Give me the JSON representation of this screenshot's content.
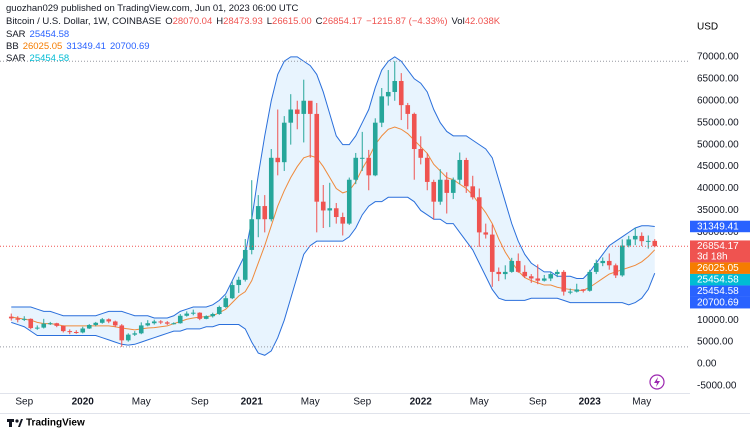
{
  "header": {
    "publisher": "guozhan029 published on TradingView.com, Jun 01, 2023 06:00 UTC",
    "symbol": "Bitcoin / U.S. Dollar, 1W, COINBASE",
    "ohlc": [
      {
        "label": "O",
        "value": "28070.04"
      },
      {
        "label": "H",
        "value": "28473.93"
      },
      {
        "label": "L",
        "value": "26615.00"
      },
      {
        "label": "C",
        "value": "26854.17"
      }
    ],
    "change": "−1215.87 (−4.33%)",
    "volume": {
      "label": "Vol",
      "value": "42.038K"
    },
    "indicators": [
      {
        "name": "SAR",
        "values": [
          {
            "text": "25454.58",
            "color": "#2962ff"
          }
        ]
      },
      {
        "name": "BB",
        "values": [
          {
            "text": "26025.05",
            "color": "#f57c00"
          },
          {
            "text": "31349.41",
            "color": "#2962ff"
          },
          {
            "text": "20700.69",
            "color": "#2962ff"
          }
        ]
      },
      {
        "name": "SAR",
        "values": [
          {
            "text": "25454.58",
            "color": "#00bcd4"
          }
        ]
      }
    ]
  },
  "footer": {
    "brand": "TradingView"
  },
  "chart_data": {
    "type": "candlestick",
    "currency": "USD",
    "up_color": "#26a69a",
    "down_color": "#ef5350",
    "categories": [
      null,
      null,
      "Sep",
      null,
      null,
      null,
      null,
      null,
      null,
      null,
      null,
      "2020",
      null,
      null,
      null,
      null,
      null,
      null,
      null,
      null,
      "May",
      null,
      null,
      null,
      null,
      null,
      null,
      null,
      null,
      "Sep",
      null,
      null,
      null,
      null,
      null,
      null,
      null,
      "2021",
      null,
      null,
      null,
      null,
      null,
      null,
      null,
      null,
      "May",
      null,
      null,
      null,
      null,
      null,
      null,
      null,
      "Sep",
      null,
      null,
      null,
      null,
      null,
      null,
      null,
      null,
      "2022",
      null,
      null,
      null,
      null,
      null,
      null,
      null,
      null,
      "May",
      null,
      null,
      null,
      null,
      null,
      null,
      null,
      null,
      "Sep",
      null,
      null,
      null,
      null,
      null,
      null,
      null,
      "2023",
      null,
      null,
      null,
      null,
      null,
      null,
      null,
      "May",
      null,
      null
    ],
    "open": [
      10800,
      10400,
      10100,
      10300,
      8200,
      8300,
      9200,
      9300,
      8700,
      7500,
      7300,
      7200,
      8100,
      8900,
      9400,
      10200,
      9700,
      8800,
      5400,
      6700,
      7000,
      8800,
      9300,
      9700,
      9500,
      9200,
      9300,
      11000,
      11500,
      11700,
      10300,
      10900,
      11400,
      13000,
      15000,
      18000,
      19200,
      26000,
      33000,
      36000,
      33000,
      47000,
      46000,
      55000,
      58000,
      57000,
      60000,
      57000,
      37000,
      35000,
      35500,
      33500,
      32000,
      42000,
      47000,
      47000,
      43000,
      55000,
      61000,
      62000,
      64500,
      59000,
      57000,
      49000,
      47000,
      41500,
      37000,
      42000,
      39000,
      42000,
      46500,
      40500,
      38000,
      30000,
      29500,
      21000,
      20500,
      21000,
      23500,
      21000,
      20000,
      19500,
      19000,
      19500,
      20500,
      21000,
      16500,
      16500,
      17000,
      16700,
      21000,
      23000,
      23500,
      22500,
      20200,
      27000,
      28400,
      29200,
      28000,
      28070.04
    ],
    "high": [
      11500,
      10900,
      10900,
      10400,
      8800,
      10300,
      9600,
      9400,
      8800,
      7900,
      7700,
      8500,
      9100,
      9600,
      10500,
      10400,
      9900,
      9100,
      7000,
      7500,
      9500,
      10000,
      10100,
      10000,
      9800,
      9500,
      11400,
      12000,
      12400,
      11800,
      11100,
      11700,
      13300,
      15600,
      18800,
      19900,
      28500,
      41900,
      38500,
      38500,
      49000,
      58000,
      56500,
      61500,
      60000,
      64800,
      59500,
      59500,
      40800,
      41300,
      36700,
      34500,
      42500,
      48100,
      52900,
      48800,
      56000,
      62900,
      67000,
      69000,
      66300,
      59500,
      57300,
      51900,
      48000,
      42000,
      44400,
      43700,
      42500,
      48200,
      47000,
      42900,
      40000,
      32000,
      31800,
      22000,
      22500,
      24200,
      25200,
      22500,
      20500,
      22700,
      20300,
      21000,
      21500,
      21400,
      17200,
      18300,
      17100,
      21500,
      23800,
      24300,
      25200,
      22900,
      28400,
      29200,
      31000,
      30000,
      29300,
      28473.93
    ],
    "low": [
      9900,
      9500,
      9800,
      7900,
      7800,
      8100,
      8900,
      8400,
      7200,
      6800,
      6900,
      7000,
      8000,
      8600,
      9200,
      9300,
      8400,
      3900,
      5100,
      6400,
      6800,
      8600,
      9000,
      9100,
      8900,
      9000,
      9200,
      10800,
      11100,
      10000,
      10200,
      10600,
      11200,
      12800,
      14800,
      16200,
      18800,
      25000,
      28900,
      30000,
      32500,
      43000,
      44000,
      50000,
      53500,
      50500,
      47000,
      30000,
      31000,
      31200,
      32000,
      29300,
      31700,
      41000,
      44000,
      39600,
      42800,
      54000,
      58900,
      60000,
      55600,
      53500,
      42000,
      45500,
      39600,
      33000,
      36300,
      34300,
      37600,
      41000,
      39000,
      37500,
      26700,
      28600,
      17600,
      18900,
      19300,
      20800,
      20800,
      19600,
      18500,
      18200,
      18800,
      18900,
      19800,
      15600,
      15900,
      16300,
      16300,
      16500,
      20500,
      22300,
      21500,
      19600,
      19900,
      26600,
      27100,
      26900,
      26300,
      26615
    ],
    "close": [
      10400,
      10100,
      10300,
      8200,
      8300,
      9200,
      9300,
      8700,
      7500,
      7300,
      7200,
      8100,
      8900,
      9400,
      10200,
      9700,
      8800,
      5400,
      6700,
      7000,
      8800,
      9300,
      9700,
      9500,
      9200,
      9300,
      11000,
      11500,
      11700,
      10300,
      10900,
      11400,
      13000,
      15000,
      18000,
      19200,
      26000,
      33000,
      36000,
      33000,
      47000,
      46000,
      55000,
      58000,
      57000,
      60000,
      57000,
      37000,
      35000,
      35500,
      33500,
      32000,
      42000,
      47000,
      47000,
      43000,
      55000,
      61000,
      62000,
      64500,
      59000,
      57000,
      49000,
      47000,
      41500,
      37000,
      42000,
      39000,
      42000,
      46500,
      40500,
      38000,
      30000,
      29500,
      21000,
      20500,
      21000,
      23500,
      21000,
      20000,
      19500,
      19000,
      19500,
      20500,
      21000,
      16500,
      16500,
      17000,
      16700,
      21000,
      23000,
      23500,
      22500,
      20200,
      27000,
      28400,
      29200,
      28000,
      28070.04,
      26854.17
    ],
    "bands": {
      "fill": "rgba(33,150,243,0.10)",
      "series": [
        {
          "color": "#2a6fdb",
          "values": [
            13000,
            13000,
            13000,
            13000,
            12500,
            12000,
            12000,
            11500,
            11000,
            11000,
            11000,
            11000,
            11000,
            11000,
            11500,
            12000,
            12000,
            12000,
            11500,
            11000,
            11000,
            11000,
            10500,
            10500,
            10500,
            11000,
            12000,
            12500,
            13000,
            13000,
            13000,
            13500,
            14500,
            16000,
            19000,
            22000,
            25000,
            33000,
            43000,
            52000,
            60000,
            66000,
            69000,
            70000,
            70000,
            69000,
            68000,
            66000,
            62000,
            57000,
            52000,
            50000,
            50000,
            52000,
            55000,
            58000,
            63000,
            67000,
            69000,
            70000,
            69000,
            67000,
            65000,
            64000,
            62000,
            58000,
            55000,
            53000,
            52000,
            52000,
            52000,
            51000,
            50000,
            49000,
            47000,
            42000,
            37000,
            32000,
            28000,
            25000,
            23000,
            22000,
            21000,
            21000,
            20000,
            20000,
            20000,
            19500,
            19500,
            21000,
            23000,
            25000,
            27000,
            28000,
            29000,
            30000,
            31000,
            31500,
            31500,
            31349.41
          ]
        },
        {
          "color": "#ef8a3c",
          "values": [
            10700,
            10500,
            10200,
            10000,
            9500,
            9200,
            9200,
            9000,
            8700,
            8700,
            8700,
            8700,
            8700,
            8700,
            8700,
            8700,
            8500,
            8200,
            8000,
            7800,
            8000,
            8200,
            8300,
            8500,
            8700,
            9200,
            9700,
            10200,
            10500,
            10700,
            10800,
            11000,
            11700,
            12500,
            14000,
            15500,
            16500,
            19000,
            23000,
            27000,
            31500,
            36000,
            39500,
            42500,
            45000,
            47000,
            47500,
            47000,
            45000,
            42500,
            40000,
            39000,
            39500,
            41500,
            44500,
            47000,
            50000,
            52000,
            53500,
            54000,
            53500,
            52500,
            51000,
            49500,
            48000,
            45500,
            44000,
            42500,
            42000,
            41000,
            40000,
            38500,
            36500,
            34500,
            32000,
            28500,
            25500,
            23200,
            21200,
            19700,
            19000,
            18500,
            18000,
            18000,
            17500,
            17200,
            17000,
            16800,
            16800,
            17500,
            18500,
            19500,
            20500,
            21000,
            21500,
            22000,
            22500,
            23300,
            24500,
            26025.05
          ]
        },
        {
          "color": "#2a6fdb",
          "values": [
            9500,
            9000,
            8500,
            7500,
            6500,
            6500,
            6500,
            6500,
            6500,
            6500,
            6500,
            6500,
            6500,
            6500,
            6000,
            5500,
            5000,
            4500,
            4300,
            4500,
            5000,
            5500,
            6000,
            6500,
            7000,
            7500,
            7500,
            8000,
            8000,
            8000,
            8500,
            8500,
            9000,
            9000,
            9000,
            9000,
            8000,
            5000,
            2500,
            2000,
            3000,
            6000,
            10000,
            15000,
            20000,
            25000,
            27000,
            28000,
            28000,
            28000,
            28000,
            28000,
            29000,
            31000,
            34000,
            36000,
            37000,
            37000,
            38000,
            38000,
            38000,
            38000,
            37000,
            35000,
            34000,
            33000,
            33000,
            32000,
            32000,
            30000,
            28000,
            26000,
            23000,
            20000,
            17000,
            15000,
            14500,
            14500,
            14500,
            14500,
            15000,
            15000,
            15000,
            15000,
            15000,
            14500,
            14000,
            14000,
            14000,
            14000,
            14000,
            14000,
            14000,
            14000,
            14000,
            13500,
            14000,
            15000,
            17000,
            20700.69
          ]
        }
      ]
    },
    "price_badges": [
      {
        "value": 31349.41,
        "label": "31349.41",
        "color": "#2962ff"
      },
      {
        "value": 26854.17,
        "label": "26854.17",
        "sublabel": "3d 18h",
        "color": "#ef5350"
      },
      {
        "value": 26025.05,
        "label": "26025.05",
        "color": "#f57c00"
      },
      {
        "value": 25454.58,
        "label": "25454.58",
        "color": "#00bcd4"
      },
      {
        "value": 25454.58,
        "label": "25454.58",
        "color": "#2962ff"
      },
      {
        "value": 20700.69,
        "label": "20700.69",
        "color": "#2962ff"
      }
    ],
    "ylim": [
      -6600,
      78400
    ],
    "yticks": [
      {
        "value": 70000,
        "label": "70000.00"
      },
      {
        "value": 65000,
        "label": "65000.00"
      },
      {
        "value": 60000,
        "label": "60000.00"
      },
      {
        "value": 55000,
        "label": "55000.00"
      },
      {
        "value": 50000,
        "label": "50000.00"
      },
      {
        "value": 45000,
        "label": "45000.00"
      },
      {
        "value": 40000,
        "label": "40000.00"
      },
      {
        "value": 35000,
        "label": "35000.00"
      },
      {
        "value": 30000,
        "label": "30000.00"
      },
      {
        "value": 25000,
        "label": "25000.00"
      },
      {
        "value": 20000,
        "label": "20000.00"
      },
      {
        "value": 15000,
        "label": "15000.00"
      },
      {
        "value": 10000,
        "label": "10000.00"
      },
      {
        "value": 5000,
        "label": "5000.00"
      },
      {
        "value": 0,
        "label": "0.00"
      },
      {
        "value": -5000,
        "label": "-5000.00"
      }
    ],
    "grid": false
  }
}
